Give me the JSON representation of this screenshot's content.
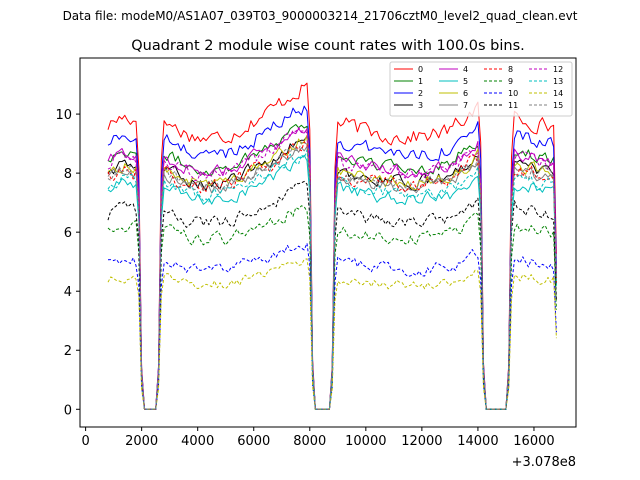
{
  "figure": {
    "suptitle": "Data file: modeM0/AS1A07_039T03_9000003214_21706cztM0_level2_quad_clean.evt",
    "title": "Quadrant 2 module wise count rates with 100.0s bins.",
    "offset_label": "+3.078e8"
  },
  "chart_data": {
    "type": "line",
    "title": "Quadrant 2 module wise count rates with 100.0s bins.",
    "xlabel": "",
    "ylabel": "",
    "x_offset": 307800000,
    "xlim": [
      -200,
      17500
    ],
    "ylim": [
      -0.6,
      11.9
    ],
    "xticks": [
      0,
      2000,
      4000,
      6000,
      8000,
      10000,
      12000,
      14000,
      16000
    ],
    "xtick_labels": [
      "0",
      "2000",
      "4000",
      "6000",
      "8000",
      "10000",
      "12000",
      "14000",
      "16000"
    ],
    "yticks": [
      0,
      2,
      4,
      6,
      8,
      10
    ],
    "ytick_labels": [
      "0",
      "2",
      "4",
      "6",
      "8",
      "10"
    ],
    "x_range": [
      800,
      16800
    ],
    "x_step": 100,
    "gaps": [
      [
        2100,
        2500
      ],
      [
        8200,
        8700
      ],
      [
        14300,
        15000
      ]
    ],
    "legend_position": "top-right",
    "series": [
      {
        "name": "0",
        "color": "#ff0000",
        "style": "solid",
        "level": 9.6,
        "jitter": 0.45
      },
      {
        "name": "1",
        "color": "#008000",
        "style": "solid",
        "level": 8.5,
        "jitter": 0.35
      },
      {
        "name": "2",
        "color": "#0000ff",
        "style": "solid",
        "level": 9.0,
        "jitter": 0.4
      },
      {
        "name": "3",
        "color": "#000000",
        "style": "solid",
        "level": 8.0,
        "jitter": 0.35
      },
      {
        "name": "4",
        "color": "#bf00bf",
        "style": "solid",
        "level": 8.4,
        "jitter": 0.35
      },
      {
        "name": "5",
        "color": "#00bfbf",
        "style": "solid",
        "level": 7.4,
        "jitter": 0.35
      },
      {
        "name": "6",
        "color": "#bfbf00",
        "style": "solid",
        "level": 8.0,
        "jitter": 0.35
      },
      {
        "name": "7",
        "color": "#808080",
        "style": "solid",
        "level": 7.8,
        "jitter": 0.35
      },
      {
        "name": "8",
        "color": "#ff0000",
        "style": "dashed",
        "level": 7.9,
        "jitter": 0.45
      },
      {
        "name": "9",
        "color": "#008000",
        "style": "dashed",
        "level": 6.0,
        "jitter": 0.35
      },
      {
        "name": "10",
        "color": "#0000ff",
        "style": "dashed",
        "level": 4.9,
        "jitter": 0.35
      },
      {
        "name": "11",
        "color": "#000000",
        "style": "dashed",
        "level": 6.6,
        "jitter": 0.35
      },
      {
        "name": "12",
        "color": "#bf00bf",
        "style": "dashed",
        "level": 8.3,
        "jitter": 0.35
      },
      {
        "name": "13",
        "color": "#00bfbf",
        "style": "dashed",
        "level": 7.6,
        "jitter": 0.35
      },
      {
        "name": "14",
        "color": "#bfbf00",
        "style": "dashed",
        "level": 4.4,
        "jitter": 0.3
      },
      {
        "name": "15",
        "color": "#808080",
        "style": "dashed",
        "level": 7.9,
        "jitter": 0.35
      }
    ]
  }
}
